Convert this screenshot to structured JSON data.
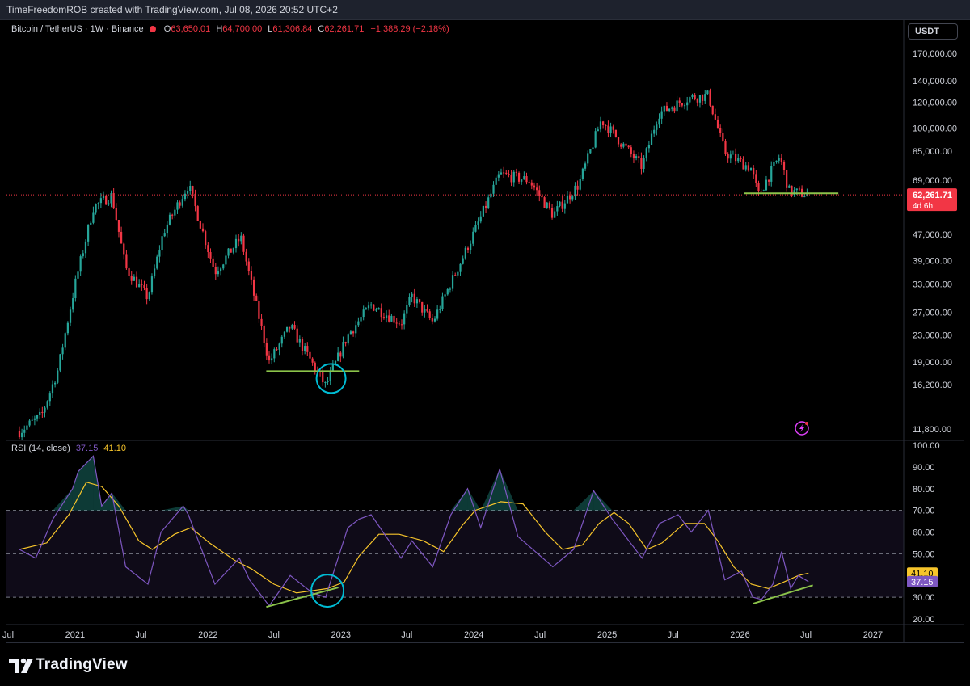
{
  "header": {
    "credit": "TimeFreedomROB created with TradingView.com, Jul 08, 2026 20:52 UTC+2"
  },
  "legend": {
    "symbol": "Bitcoin / TetherUS · 1W · Binance",
    "open_label": "O",
    "open": "63,650.01",
    "high_label": "H",
    "high": "64,700.00",
    "low_label": "L",
    "low": "61,306.84",
    "close_label": "C",
    "close": "62,261.71",
    "change": "−1,388.29 (−2.18%)"
  },
  "currency_button": "USDT",
  "current_price": {
    "price": "62,261.71",
    "countdown": "4d 6h"
  },
  "rsi_legend": {
    "title": "RSI (14, close)",
    "rsi": "37.15",
    "ma": "41.10"
  },
  "rsi_badges": {
    "ma": "41.10",
    "rsi": "37.15"
  },
  "brand": "TradingView",
  "colors": {
    "up": "#26a69a",
    "down": "#f23645",
    "rsi": "#7e57c2",
    "rsi_ma": "#f7c52b",
    "support": "#8bc34a",
    "circle": "#00bcd4"
  },
  "chart_data": [
    {
      "type": "candlestick",
      "title": "Bitcoin / TetherUS · 1W · Binance",
      "y_scale": "log",
      "y_ticks": [
        "170,000.00",
        "140,000.00",
        "120,000.00",
        "100,000.00",
        "85,000.00",
        "69,000.00",
        "47,000.00",
        "39,000.00",
        "33,000.00",
        "27,000.00",
        "23,000.00",
        "19,000.00",
        "16,200.00",
        "11,800.00"
      ],
      "y_tick_values": [
        170000,
        140000,
        120000,
        100000,
        85000,
        69000,
        47000,
        39000,
        33000,
        27000,
        23000,
        19000,
        16200,
        11800
      ],
      "x_ticks": [
        "Jul",
        "2021",
        "Jul",
        "2022",
        "Jul",
        "2023",
        "Jul",
        "2024",
        "Jul",
        "2025",
        "Jul",
        "2026",
        "Jul",
        "2027"
      ],
      "x_tick_dates": [
        "2020-07-01",
        "2021-01-01",
        "2021-07-01",
        "2022-01-01",
        "2022-07-01",
        "2023-01-01",
        "2023-07-01",
        "2024-01-01",
        "2024-07-01",
        "2025-01-01",
        "2025-07-01",
        "2026-01-01",
        "2026-07-01",
        "2027-01-01"
      ],
      "close_path": [
        [
          "2020-08-01",
          11600
        ],
        [
          "2020-10-01",
          13000
        ],
        [
          "2020-11-15",
          18000
        ],
        [
          "2021-01-01",
          33000
        ],
        [
          "2021-02-20",
          57000
        ],
        [
          "2021-04-12",
          62000
        ],
        [
          "2021-05-20",
          37000
        ],
        [
          "2021-07-20",
          30000
        ],
        [
          "2021-09-01",
          48000
        ],
        [
          "2021-11-08",
          67000
        ],
        [
          "2022-01-20",
          36000
        ],
        [
          "2022-04-01",
          46000
        ],
        [
          "2022-06-18",
          19000
        ],
        [
          "2022-08-15",
          24500
        ],
        [
          "2022-11-20",
          16000
        ],
        [
          "2023-01-20",
          23000
        ],
        [
          "2023-03-25",
          28500
        ],
        [
          "2023-06-15",
          25000
        ],
        [
          "2023-07-15",
          30300
        ],
        [
          "2023-09-10",
          25200
        ],
        [
          "2023-12-15",
          43000
        ],
        [
          "2024-03-12",
          72000
        ],
        [
          "2024-06-01",
          69000
        ],
        [
          "2024-08-05",
          54000
        ],
        [
          "2024-10-15",
          67000
        ],
        [
          "2024-12-16",
          106000
        ],
        [
          "2025-04-07",
          76000
        ],
        [
          "2025-05-22",
          111000
        ],
        [
          "2025-08-14",
          124000
        ],
        [
          "2025-10-06",
          126000
        ],
        [
          "2025-11-20",
          84000
        ],
        [
          "2026-02-01",
          75000
        ],
        [
          "2026-02-20",
          62000
        ],
        [
          "2026-04-20",
          82000
        ],
        [
          "2026-05-15",
          64000
        ],
        [
          "2026-07-08",
          62261.71
        ]
      ],
      "current_price": 62261.71,
      "support_lines": [
        {
          "from": "2022-06-10",
          "to": "2023-02-20",
          "price": 17800
        },
        {
          "from": "2026-01-12",
          "to": "2026-09-28",
          "price": 62900
        }
      ],
      "annotations": [
        {
          "type": "circle",
          "date": "2022-12-05",
          "price": 16900
        }
      ]
    },
    {
      "type": "line",
      "title": "RSI (14, close)",
      "ylim": [
        20,
        100
      ],
      "y_ticks": [
        "100.00",
        "90.00",
        "80.00",
        "70.00",
        "60.00",
        "50.00",
        "40.00",
        "30.00",
        "20.00"
      ],
      "y_tick_values": [
        100,
        90,
        80,
        70,
        60,
        50,
        40,
        30,
        20
      ],
      "bands": {
        "upper": 70,
        "middle": 50,
        "lower": 30
      },
      "series": [
        {
          "name": "RSI",
          "points": [
            [
              "2020-08-01",
              52
            ],
            [
              "2020-09-15",
              48
            ],
            [
              "2020-11-01",
              66
            ],
            [
              "2020-12-25",
              80
            ],
            [
              "2021-01-10",
              88
            ],
            [
              "2021-02-20",
              95
            ],
            [
              "2021-03-15",
              72
            ],
            [
              "2021-04-12",
              78
            ],
            [
              "2021-05-20",
              44
            ],
            [
              "2021-07-20",
              36
            ],
            [
              "2021-08-25",
              60
            ],
            [
              "2021-10-25",
              72
            ],
            [
              "2021-11-08",
              68
            ],
            [
              "2022-01-20",
              36
            ],
            [
              "2022-03-28",
              48
            ],
            [
              "2022-04-25",
              38
            ],
            [
              "2022-06-18",
              26
            ],
            [
              "2022-08-15",
              40
            ],
            [
              "2022-10-15",
              32
            ],
            [
              "2022-11-20",
              30
            ],
            [
              "2023-01-20",
              62
            ],
            [
              "2023-02-20",
              66
            ],
            [
              "2023-03-25",
              68
            ],
            [
              "2023-06-15",
              48
            ],
            [
              "2023-07-15",
              56
            ],
            [
              "2023-09-10",
              44
            ],
            [
              "2023-10-30",
              68
            ],
            [
              "2023-12-15",
              80
            ],
            [
              "2024-01-20",
              62
            ],
            [
              "2024-03-12",
              89
            ],
            [
              "2024-05-01",
              58
            ],
            [
              "2024-08-05",
              44
            ],
            [
              "2024-10-01",
              52
            ],
            [
              "2024-11-25",
              79
            ],
            [
              "2025-01-15",
              66
            ],
            [
              "2025-04-07",
              48
            ],
            [
              "2025-05-25",
              64
            ],
            [
              "2025-07-15",
              68
            ],
            [
              "2025-08-20",
              60
            ],
            [
              "2025-10-06",
              70
            ],
            [
              "2025-11-20",
              38
            ],
            [
              "2026-01-05",
              42
            ],
            [
              "2026-02-05",
              30
            ],
            [
              "2026-03-01",
              29
            ],
            [
              "2026-04-01",
              36
            ],
            [
              "2026-04-25",
              51
            ],
            [
              "2026-05-20",
              34
            ],
            [
              "2026-06-10",
              40
            ],
            [
              "2026-07-08",
              37.15
            ]
          ]
        },
        {
          "name": "RSI-based MA",
          "points": [
            [
              "2020-08-01",
              52
            ],
            [
              "2020-10-15",
              55
            ],
            [
              "2020-12-15",
              68
            ],
            [
              "2021-02-01",
              83
            ],
            [
              "2021-03-15",
              81
            ],
            [
              "2021-05-01",
              72
            ],
            [
              "2021-06-25",
              56
            ],
            [
              "2021-08-01",
              52
            ],
            [
              "2021-10-01",
              59
            ],
            [
              "2021-11-15",
              62
            ],
            [
              "2022-01-05",
              55
            ],
            [
              "2022-03-15",
              47
            ],
            [
              "2022-05-01",
              43
            ],
            [
              "2022-07-01",
              36
            ],
            [
              "2022-09-01",
              32
            ],
            [
              "2022-11-25",
              34
            ],
            [
              "2023-01-10",
              37
            ],
            [
              "2023-02-20",
              49
            ],
            [
              "2023-04-15",
              59
            ],
            [
              "2023-06-10",
              59
            ],
            [
              "2023-08-15",
              56
            ],
            [
              "2023-10-10",
              51
            ],
            [
              "2023-11-30",
              63
            ],
            [
              "2024-01-05",
              70
            ],
            [
              "2024-03-15",
              74
            ],
            [
              "2024-05-15",
              73
            ],
            [
              "2024-07-15",
              60
            ],
            [
              "2024-09-01",
              52
            ],
            [
              "2024-10-25",
              54
            ],
            [
              "2024-12-10",
              64
            ],
            [
              "2025-01-20",
              69
            ],
            [
              "2025-03-01",
              64
            ],
            [
              "2025-04-20",
              52
            ],
            [
              "2025-06-01",
              55
            ],
            [
              "2025-08-01",
              64
            ],
            [
              "2025-09-25",
              64
            ],
            [
              "2025-11-01",
              56
            ],
            [
              "2025-12-15",
              44
            ],
            [
              "2026-02-01",
              36
            ],
            [
              "2026-03-20",
              34
            ],
            [
              "2026-05-01",
              37
            ],
            [
              "2026-06-10",
              40
            ],
            [
              "2026-07-08",
              41.1
            ]
          ]
        }
      ],
      "current": {
        "rsi": 37.15,
        "ma": 41.1
      },
      "trendlines": [
        {
          "points": [
            [
              "2022-06-10",
              25.5
            ],
            [
              "2022-12-25",
              34.5
            ]
          ]
        },
        {
          "points": [
            [
              "2026-02-05",
              27.0
            ],
            [
              "2026-07-20",
              35.5
            ]
          ]
        }
      ],
      "annotations": [
        {
          "type": "circle",
          "date": "2022-11-25",
          "value": 33
        }
      ]
    }
  ]
}
